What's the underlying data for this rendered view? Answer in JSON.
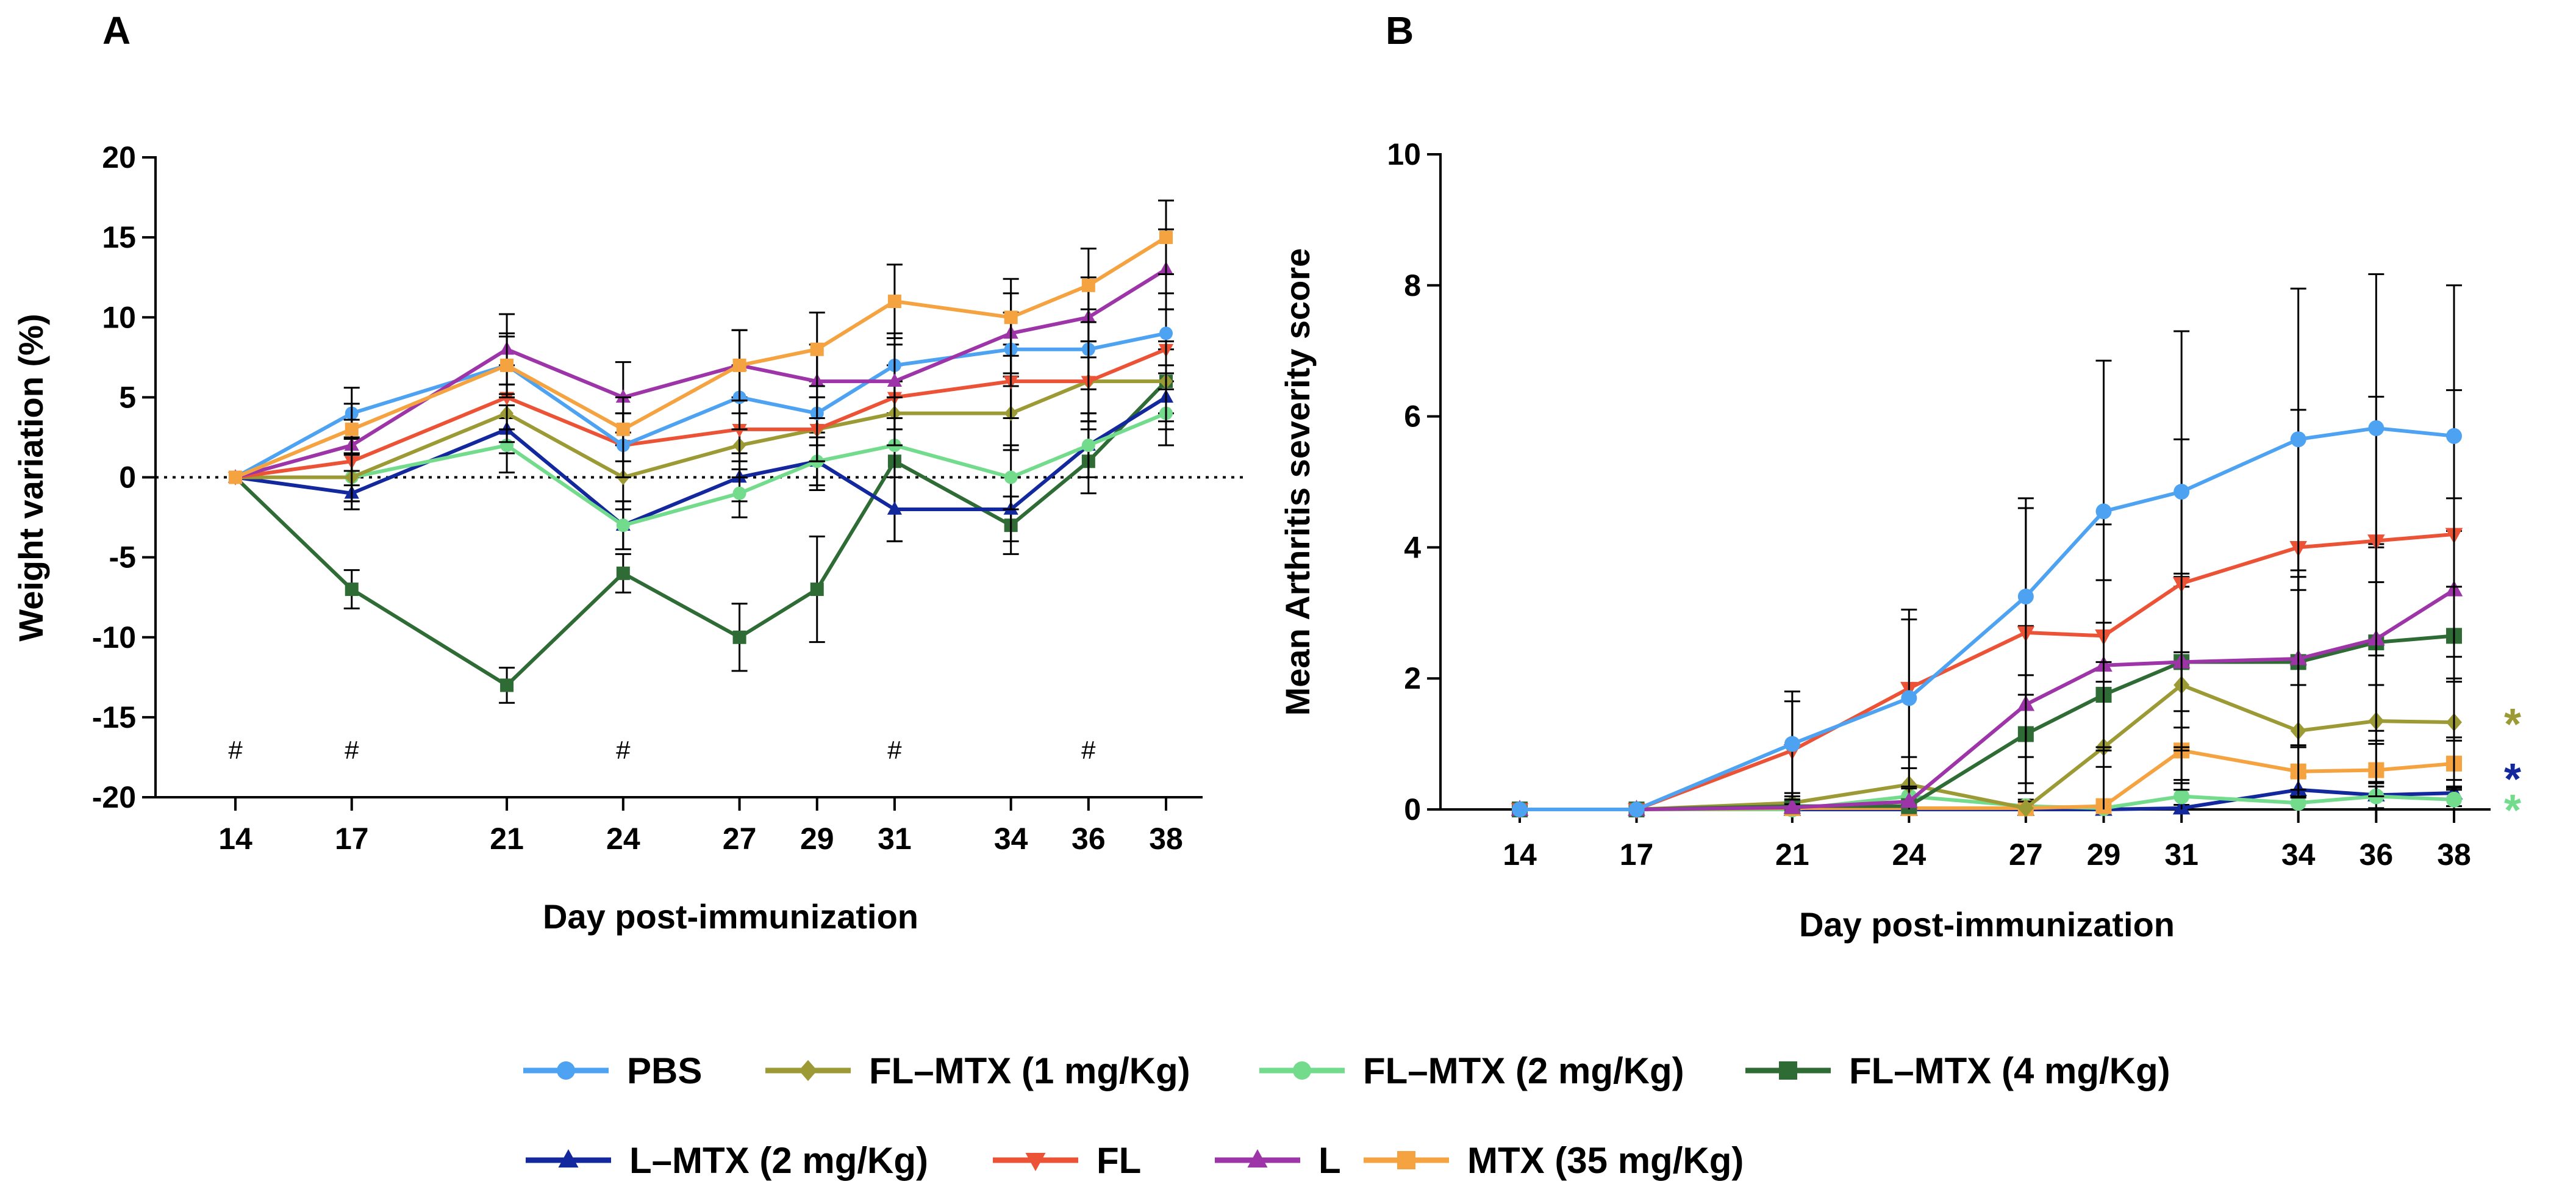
{
  "chart_data": [
    {
      "panel": "A",
      "type": "line",
      "xlabel": "Day post-immunization",
      "ylabel": "Weight variation (%)",
      "ylim": [
        -20,
        20
      ],
      "yticks": [
        -20,
        -15,
        -10,
        -5,
        0,
        5,
        10,
        15,
        20
      ],
      "x": [
        14,
        17,
        21,
        24,
        27,
        29,
        31,
        34,
        36,
        38
      ],
      "reference_line": 0,
      "annotations": [
        {
          "x": 14,
          "text": "#"
        },
        {
          "x": 17,
          "text": "#"
        },
        {
          "x": 24,
          "text": "#"
        },
        {
          "x": 31,
          "text": "#"
        },
        {
          "x": 36,
          "text": "#"
        }
      ],
      "series": [
        {
          "name": "PBS",
          "values": [
            0,
            4,
            7,
            2,
            5,
            4,
            7,
            8,
            8,
            9
          ],
          "errors": [
            0,
            1.6,
            1.8,
            2,
            2,
            2,
            2,
            2.3,
            2.5,
            2.5
          ]
        },
        {
          "name": "FL–MTX (1 mg/Kg)",
          "values": [
            0,
            0,
            4,
            0,
            2,
            3,
            4,
            4,
            6,
            6
          ],
          "errors": [
            0,
            1.5,
            1.8,
            2,
            2,
            2,
            2,
            2.3,
            2.5,
            2.5
          ]
        },
        {
          "name": "FL–MTX (2 mg/Kg)",
          "values": [
            0,
            0,
            2,
            -3,
            -1,
            1,
            2,
            0,
            2,
            4
          ],
          "errors": [
            0,
            1.5,
            1.7,
            1.5,
            1.5,
            1.8,
            2,
            2,
            2,
            2
          ]
        },
        {
          "name": "FL–MTX (4 mg/Kg)",
          "values": [
            0,
            -7,
            -13,
            -6,
            -10,
            -7,
            1,
            -3,
            1,
            6
          ],
          "errors": [
            0,
            1.2,
            1.1,
            1.2,
            2.1,
            3.3,
            5,
            1.8,
            2,
            2
          ]
        },
        {
          "name": "L–MTX (2 mg/Kg)",
          "values": [
            0,
            -1,
            3,
            -3,
            0,
            1,
            -2,
            -2,
            2,
            5
          ],
          "errors": [
            0,
            1,
            1.5,
            1.5,
            1.5,
            1.5,
            2,
            2,
            2,
            2
          ]
        },
        {
          "name": "FL",
          "values": [
            0,
            1,
            5,
            2,
            3,
            3,
            5,
            6,
            6,
            8
          ],
          "errors": [
            0,
            1.5,
            2,
            2,
            2,
            2,
            2,
            2.3,
            2.5,
            2.5
          ]
        },
        {
          "name": "L",
          "values": [
            0,
            2,
            8,
            5,
            7,
            6,
            6,
            9,
            10,
            13
          ],
          "errors": [
            0,
            1.6,
            2.2,
            2.2,
            2.2,
            2.3,
            2.3,
            2.5,
            2.5,
            2.5
          ]
        },
        {
          "name": "MTX (35 mg/Kg)",
          "values": [
            0,
            3,
            7,
            3,
            7,
            8,
            11,
            10,
            12,
            15
          ],
          "errors": [
            0,
            1.6,
            2,
            2,
            2.2,
            2.3,
            2.3,
            2.4,
            2.3,
            2.3
          ]
        }
      ]
    },
    {
      "panel": "B",
      "type": "line",
      "xlabel": "Day post-immunization",
      "ylabel": "Mean  Arthritis severity score",
      "ylim": [
        0,
        10
      ],
      "yticks": [
        0,
        2,
        4,
        6,
        8,
        10
      ],
      "x": [
        14,
        17,
        21,
        24,
        27,
        29,
        31,
        34,
        36,
        38
      ],
      "significance": [
        {
          "series": "FL–MTX (1 mg/Kg)",
          "text": "*"
        },
        {
          "series": "L–MTX (2 mg/Kg)",
          "text": "*"
        },
        {
          "series": "FL–MTX (2 mg/Kg)",
          "text": "*"
        }
      ],
      "series": [
        {
          "name": "PBS",
          "values": [
            0,
            0,
            1,
            1.7,
            3.25,
            4.55,
            4.85,
            5.65,
            5.82,
            5.7
          ],
          "errors": [
            0,
            0,
            0.8,
            1.35,
            1.5,
            2.3,
            2.45,
            2.3,
            2.35,
            2.3
          ]
        },
        {
          "name": "FL–MTX (1 mg/Kg)",
          "values": [
            0,
            0,
            0.1,
            0.38,
            0.02,
            0.95,
            1.9,
            1.2,
            1.35,
            1.33
          ],
          "errors": [
            0,
            0,
            0.15,
            0.25,
            0.1,
            1.0,
            1.5,
            1.0,
            1.0,
            1.0
          ]
        },
        {
          "name": "FL–MTX (2 mg/Kg)",
          "values": [
            0,
            0,
            0,
            0.2,
            0.05,
            0.02,
            0.2,
            0.1,
            0.2,
            0.15
          ],
          "errors": [
            0,
            0,
            0,
            0.15,
            0.1,
            0.1,
            0.25,
            0.2,
            0.2,
            0.2
          ]
        },
        {
          "name": "FL–MTX (4 mg/Kg)",
          "values": [
            0,
            0,
            0.05,
            0.05,
            1.15,
            1.75,
            2.25,
            2.25,
            2.55,
            2.65
          ],
          "errors": [
            0,
            0,
            0.05,
            0.1,
            0.9,
            1.1,
            1.3,
            1.3,
            1.5,
            1.6
          ]
        },
        {
          "name": "L–MTX (2 mg/Kg)",
          "values": [
            0,
            0,
            0,
            0,
            0,
            0,
            0.02,
            0.3,
            0.22,
            0.25
          ],
          "errors": [
            0,
            0,
            0,
            0,
            0,
            0,
            0.05,
            0.2,
            0.2,
            0.2
          ]
        },
        {
          "name": "FL",
          "values": [
            0,
            0,
            0.9,
            1.85,
            2.7,
            2.65,
            3.45,
            4.0,
            4.1,
            4.2
          ],
          "errors": [
            0,
            0,
            0.75,
            1.05,
            1.9,
            1.7,
            2.2,
            2.1,
            2.2,
            2.2
          ]
        },
        {
          "name": "L",
          "values": [
            0,
            0,
            0.03,
            0.12,
            1.6,
            2.2,
            2.25,
            2.3,
            2.6,
            3.35
          ],
          "errors": [
            0,
            0,
            0.05,
            0.2,
            1.2,
            1.3,
            1.35,
            1.35,
            1.4,
            1.4
          ]
        },
        {
          "name": "MTX (35 mg/Kg)",
          "values": [
            0,
            0,
            0.02,
            0.02,
            0.02,
            0.05,
            0.9,
            0.58,
            0.6,
            0.7
          ],
          "errors": [
            0,
            0,
            0.05,
            0.05,
            0.05,
            0.1,
            0.6,
            0.4,
            0.4,
            0.4
          ]
        }
      ]
    }
  ],
  "legend": [
    {
      "name": "PBS",
      "label": "PBS",
      "color": "#4da3f2",
      "marker": "circle"
    },
    {
      "name": "FL–MTX (1 mg/Kg)",
      "label": "FL–MTX (1 mg/Kg)",
      "color": "#9c9a34",
      "marker": "diamond"
    },
    {
      "name": "FL–MTX (2 mg/Kg)",
      "label": "FL–MTX (2 mg/Kg)",
      "color": "#72dc8c",
      "marker": "circle"
    },
    {
      "name": "FL–MTX (4 mg/Kg)",
      "label": "FL–MTX (4 mg/Kg)",
      "color": "#2e6b35",
      "marker": "square"
    },
    {
      "name": "L–MTX (2 mg/Kg)",
      "label": "L–MTX (2 mg/Kg)",
      "color": "#13289c",
      "marker": "triangle-up"
    },
    {
      "name": "FL",
      "label": "FL",
      "color": "#ec5336",
      "marker": "triangle-down"
    },
    {
      "name": "L",
      "label": "L",
      "color": "#9d35a8",
      "marker": "triangle-up"
    },
    {
      "name": "MTX (35 mg/Kg)",
      "label": "MTX (35 mg/Kg)",
      "color": "#f4a340",
      "marker": "square"
    }
  ]
}
